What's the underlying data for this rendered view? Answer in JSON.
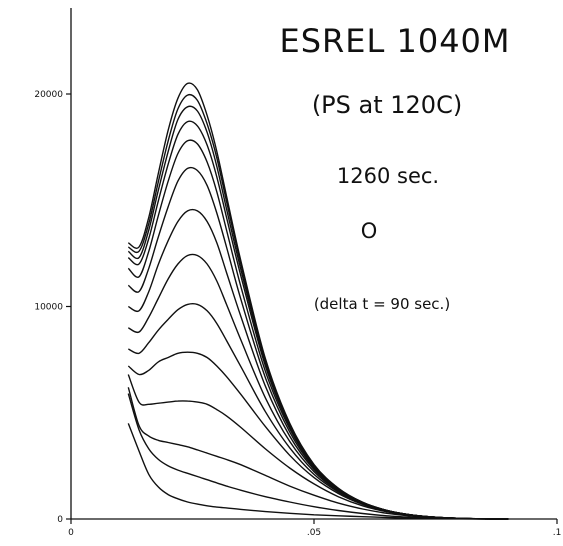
{
  "chart_data": {
    "type": "line",
    "title": "ESREL 1040M",
    "subtitle": "(PS at 120C)",
    "annotations": [
      "1260 sec.",
      "O",
      "(delta t = 90 sec.)"
    ],
    "xlabel": "",
    "ylabel": "",
    "xlim": [
      0,
      0.1
    ],
    "ylim": [
      0,
      25000
    ],
    "x_ticks": [
      0,
      0.05,
      0.1
    ],
    "x_tick_labels": [
      "0",
      ".05",
      ".1"
    ],
    "y_ticks": [
      0,
      10000,
      20000
    ],
    "y_tick_labels": [
      "0",
      "10000",
      "20000"
    ],
    "grid": false,
    "legend": "none",
    "line_color": "#111111",
    "x": [
      0.0118,
      0.014,
      0.016,
      0.018,
      0.02,
      0.022,
      0.024,
      0.026,
      0.028,
      0.03,
      0.032,
      0.035,
      0.04,
      0.045,
      0.05,
      0.055,
      0.06,
      0.065,
      0.07,
      0.075,
      0.08,
      0.085,
      0.09
    ],
    "series": [
      {
        "values": [
          4500,
          3200,
          2100,
          1500,
          1150,
          950,
          800,
          700,
          620,
          560,
          520,
          450,
          350,
          270,
          200,
          150,
          110,
          70,
          40,
          20,
          10,
          0,
          0
        ]
      },
      {
        "values": [
          5900,
          4200,
          3300,
          2800,
          2500,
          2300,
          2150,
          2000,
          1850,
          1700,
          1550,
          1350,
          1050,
          800,
          580,
          400,
          260,
          150,
          80,
          40,
          15,
          0,
          0
        ]
      },
      {
        "values": [
          6200,
          4400,
          3900,
          3700,
          3600,
          3500,
          3400,
          3250,
          3100,
          2950,
          2800,
          2550,
          2050,
          1550,
          1120,
          750,
          470,
          270,
          140,
          65,
          25,
          5,
          0
        ]
      },
      {
        "values": [
          6800,
          5500,
          5400,
          5450,
          5500,
          5550,
          5550,
          5500,
          5400,
          5150,
          4850,
          4300,
          3300,
          2400,
          1650,
          1050,
          620,
          340,
          170,
          80,
          30,
          8,
          0
        ]
      },
      {
        "values": [
          7200,
          6800,
          7000,
          7400,
          7600,
          7800,
          7850,
          7800,
          7600,
          7200,
          6700,
          5850,
          4350,
          3000,
          1950,
          1200,
          690,
          370,
          180,
          80,
          30,
          8,
          0
        ]
      },
      {
        "values": [
          8000,
          7800,
          8300,
          8900,
          9400,
          9850,
          10100,
          10100,
          9800,
          9200,
          8400,
          7150,
          5050,
          3350,
          2100,
          1270,
          720,
          380,
          185,
          82,
          30,
          8,
          0
        ]
      },
      {
        "values": [
          9000,
          8800,
          9500,
          10400,
          11300,
          12000,
          12400,
          12400,
          12000,
          11200,
          10100,
          8400,
          5700,
          3650,
          2230,
          1320,
          740,
          390,
          188,
          83,
          31,
          8,
          0
        ]
      },
      {
        "values": [
          10000,
          9800,
          10700,
          12000,
          13100,
          14000,
          14500,
          14500,
          14000,
          13000,
          11600,
          9500,
          6250,
          3900,
          2330,
          1360,
          755,
          395,
          190,
          84,
          31,
          8,
          0
        ]
      },
      {
        "values": [
          11000,
          10700,
          11800,
          13300,
          14700,
          15900,
          16500,
          16400,
          15700,
          14400,
          12800,
          10300,
          6650,
          4100,
          2400,
          1390,
          765,
          398,
          191,
          84,
          31,
          8,
          0
        ]
      },
      {
        "values": [
          11800,
          11400,
          12600,
          14300,
          15900,
          17200,
          17800,
          17650,
          16800,
          15400,
          13600,
          10900,
          6950,
          4250,
          2460,
          1410,
          772,
          400,
          192,
          85,
          31,
          8,
          0
        ]
      },
      {
        "values": [
          12300,
          12000,
          13200,
          15000,
          16700,
          18100,
          18700,
          18500,
          17600,
          16100,
          14200,
          11400,
          7200,
          4350,
          2500,
          1425,
          778,
          402,
          192,
          85,
          31,
          8,
          0
        ]
      },
      {
        "values": [
          12600,
          12300,
          13600,
          15500,
          17300,
          18800,
          19400,
          19200,
          18200,
          16600,
          14600,
          11700,
          7350,
          4420,
          2530,
          1435,
          782,
          403,
          193,
          85,
          31,
          8,
          0
        ]
      },
      {
        "values": [
          12800,
          12600,
          13900,
          15900,
          17800,
          19300,
          19950,
          19700,
          18600,
          17000,
          14950,
          11950,
          7450,
          4470,
          2550,
          1442,
          785,
          404,
          193,
          85,
          31,
          8,
          0
        ]
      },
      {
        "values": [
          13000,
          12800,
          14200,
          16300,
          18300,
          19800,
          20500,
          20200,
          19000,
          17300,
          15200,
          12100,
          7550,
          4510,
          2565,
          1448,
          787,
          405,
          193,
          85,
          31,
          8,
          0
        ]
      }
    ]
  }
}
